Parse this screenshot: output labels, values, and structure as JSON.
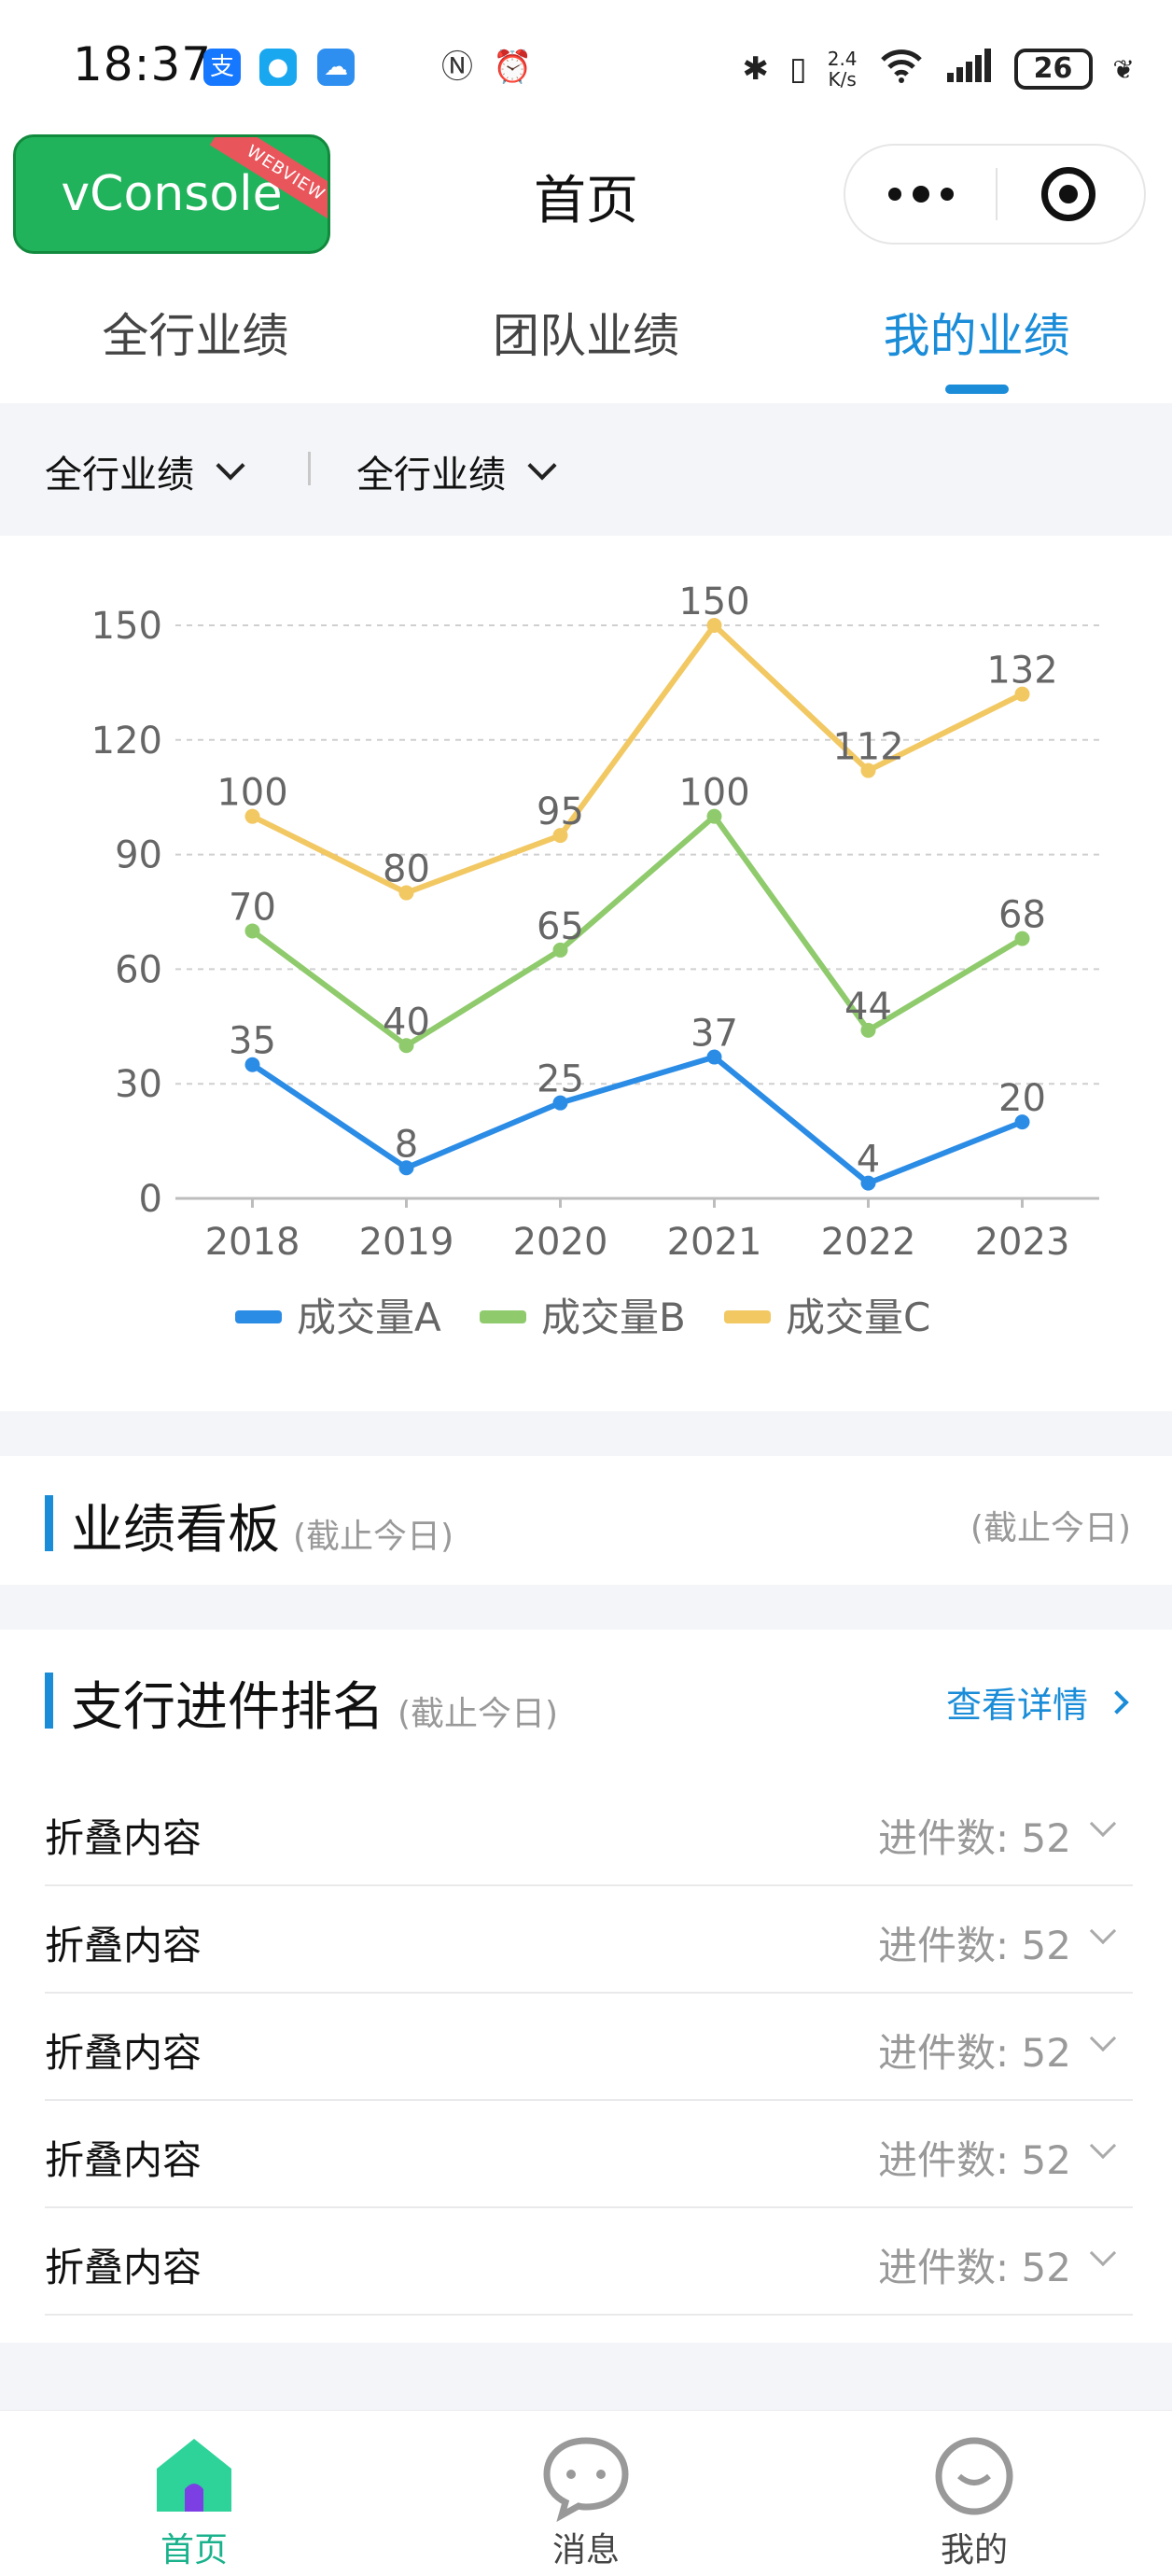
{
  "status_bar": {
    "time": "18:37",
    "network_speed_value": "2.4",
    "network_speed_unit": "K/s",
    "battery": "26"
  },
  "nav": {
    "vconsole_label": "vConsole",
    "vconsole_badge": "WEBVIEW",
    "title": "首页"
  },
  "tabs": [
    "全行业绩",
    "团队业绩",
    "我的业绩"
  ],
  "filters": [
    "全行业绩",
    "全行业绩"
  ],
  "chart_data": {
    "type": "line",
    "categories": [
      "2018",
      "2019",
      "2020",
      "2021",
      "2022",
      "2023"
    ],
    "y_ticks": [
      "0",
      "30",
      "60",
      "90",
      "120",
      "150"
    ],
    "ylim": [
      0,
      150
    ],
    "series": [
      {
        "name": "成交量A",
        "color": "#2b8ce6",
        "values": [
          35,
          8,
          25,
          37,
          4,
          20
        ]
      },
      {
        "name": "成交量B",
        "color": "#8fcb6c",
        "values": [
          70,
          40,
          65,
          100,
          44,
          68
        ]
      },
      {
        "name": "成交量C",
        "color": "#f2c863",
        "values": [
          100,
          80,
          95,
          150,
          112,
          132
        ]
      }
    ],
    "grid": "dashed-horizontal",
    "legend_position": "bottom-center"
  },
  "board": {
    "title": "业绩看板",
    "subtitle": "(截止今日)",
    "right_note": "(截止今日)"
  },
  "ranking": {
    "title": "支行进件排名",
    "subtitle": "(截止今日)",
    "detail_link": "查看详情",
    "count_label": "进件数:",
    "rows": [
      {
        "label": "折叠内容",
        "count": "52"
      },
      {
        "label": "折叠内容",
        "count": "52"
      },
      {
        "label": "折叠内容",
        "count": "52"
      },
      {
        "label": "折叠内容",
        "count": "52"
      },
      {
        "label": "折叠内容",
        "count": "52"
      }
    ]
  },
  "tabbar": {
    "items": [
      {
        "label": "首页",
        "icon": "home-icon"
      },
      {
        "label": "消息",
        "icon": "message-icon"
      },
      {
        "label": "我的",
        "icon": "profile-icon"
      }
    ]
  },
  "colors": {
    "accent": "#1a8cd8",
    "tabbar_active": "#1ab28c",
    "vconsole": "#21b35b"
  }
}
